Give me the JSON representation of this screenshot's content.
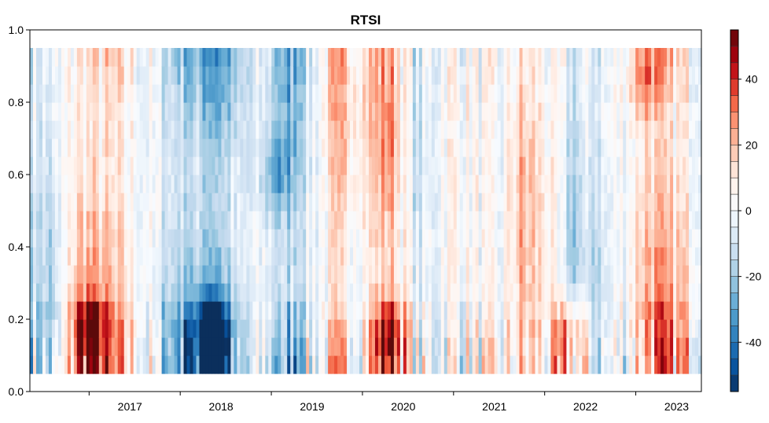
{
  "chart_data": {
    "type": "heatmap",
    "title": "RTSI",
    "xlabel": "",
    "ylabel": "",
    "x_range": [
      2016.35,
      2023.72
    ],
    "ylim": [
      0.0,
      1.0
    ],
    "data_y_range": [
      0.05,
      0.95
    ],
    "x_ticks": [
      "2017",
      "2018",
      "2019",
      "2020",
      "2021",
      "2022",
      "2023"
    ],
    "y_ticks": [
      "0.0",
      "0.2",
      "0.4",
      "0.6",
      "0.8",
      "1.0"
    ],
    "y_tick_values": [
      0.0,
      0.2,
      0.4,
      0.6,
      0.8,
      1.0
    ],
    "colorbar": {
      "range": [
        -55,
        55
      ],
      "tick_labels": [
        "40",
        "20",
        "0",
        "-20",
        "-40"
      ],
      "tick_values": [
        40,
        20,
        0,
        -20,
        -40
      ],
      "levels": 22,
      "colors_low_to_high": [
        "#0b2f5c",
        "#08519c",
        "#2171b5",
        "#4292c6",
        "#6baed6",
        "#9ecae1",
        "#c6dbef",
        "#deebf7",
        "#f7fbff",
        "#fff5f0",
        "#fee0d2",
        "#fcbba1",
        "#fc9272",
        "#ef5a3b",
        "#cb181d",
        "#99000d",
        "#5c0a0a"
      ]
    },
    "key_events": [
      {
        "date": 2017.0,
        "q_band": "low",
        "value": 45
      },
      {
        "date": 2018.35,
        "q_band": "low",
        "value": -50
      },
      {
        "date": 2019.05,
        "q_band": "mid",
        "value": -35
      },
      {
        "date": 2020.3,
        "q_band": "low",
        "value": 55
      },
      {
        "date": 2022.3,
        "q_band": "low",
        "value": 50
      },
      {
        "date": 2023.1,
        "q_band": "high",
        "value": 45
      }
    ],
    "grid": false,
    "legend": "colorbar-right"
  }
}
